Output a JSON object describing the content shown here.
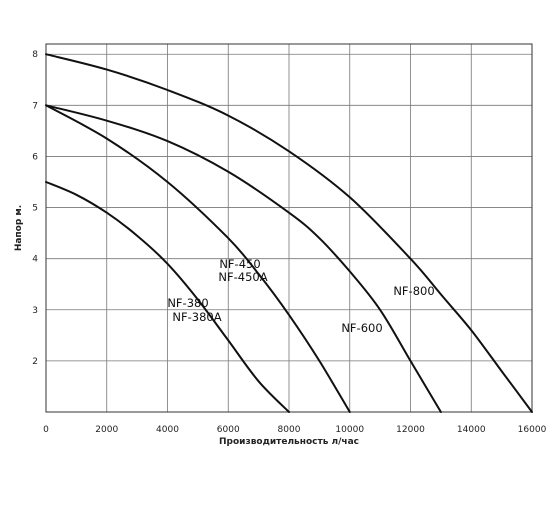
{
  "chart_data": {
    "type": "line",
    "xlabel": "Производительность л/час",
    "ylabel": "Напор м.",
    "xlim": [
      0,
      16000
    ],
    "ylim": [
      1,
      8.2
    ],
    "x_ticks": [
      "0",
      "2000",
      "4000",
      "6000",
      "8000",
      "10000",
      "12000",
      "14000",
      "16000"
    ],
    "y_ticks": [
      "2",
      "3",
      "4",
      "5",
      "6",
      "7",
      "8"
    ],
    "grid": true,
    "series": [
      {
        "name": "NF-380 NF-380A",
        "label_lines": [
          "NF-380",
          "NF-380A"
        ],
        "x": [
          0,
          1000,
          2000,
          3000,
          4000,
          5000,
          6000,
          7000,
          8000
        ],
        "y": [
          5.5,
          5.25,
          4.9,
          4.45,
          3.9,
          3.2,
          2.4,
          1.6,
          1.0
        ]
      },
      {
        "name": "NF-450 NF-450A",
        "label_lines": [
          "NF-450",
          "NF-450A"
        ],
        "x": [
          0,
          2000,
          4000,
          6000,
          7000,
          8000,
          9000,
          10000
        ],
        "y": [
          7.0,
          6.35,
          5.5,
          4.4,
          3.7,
          2.9,
          2.0,
          1.0
        ]
      },
      {
        "name": "NF-600",
        "label_lines": [
          "NF-600"
        ],
        "x": [
          0,
          2000,
          4000,
          6000,
          8000,
          9000,
          10000,
          11000,
          12000,
          13000
        ],
        "y": [
          7.0,
          6.7,
          6.3,
          5.7,
          4.9,
          4.4,
          3.75,
          3.0,
          2.0,
          1.0
        ]
      },
      {
        "name": "NF-800",
        "label_lines": [
          "NF-800"
        ],
        "x": [
          0,
          2000,
          4000,
          6000,
          8000,
          10000,
          12000,
          13000,
          14000,
          15000,
          16000
        ],
        "y": [
          8.0,
          7.7,
          7.3,
          6.8,
          6.1,
          5.2,
          4.0,
          3.3,
          2.6,
          1.8,
          1.0
        ]
      }
    ]
  }
}
